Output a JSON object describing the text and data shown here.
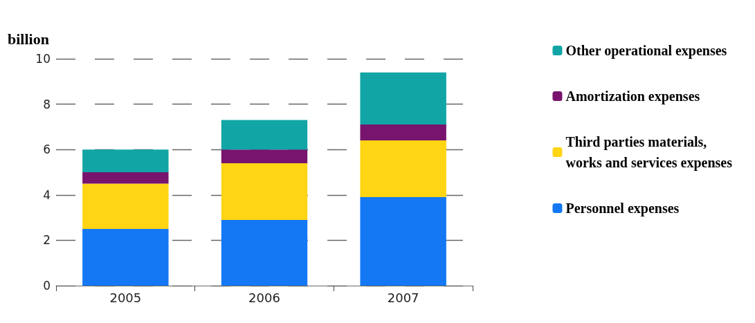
{
  "chart_data": {
    "type": "bar",
    "ylabel": "billion",
    "categories": [
      "2005",
      "2006",
      "2007"
    ],
    "stacked": true,
    "series": [
      {
        "name": "Personnel expenses",
        "color": "#1478f5",
        "values": [
          2.5,
          2.9,
          3.9
        ]
      },
      {
        "name": "Third parties materials, works and services expenses",
        "color": "#ffd514",
        "values": [
          2.0,
          2.5,
          2.5
        ]
      },
      {
        "name": "Amortization expenses",
        "color": "#78146e",
        "values": [
          0.5,
          0.6,
          0.7
        ]
      },
      {
        "name": "Other operational expenses",
        "color": "#12a5a5",
        "values": [
          1.0,
          1.3,
          2.3
        ]
      }
    ],
    "ylim": [
      0,
      10
    ],
    "yticks": [
      0,
      2,
      4,
      6,
      8,
      10
    ],
    "grid": "y",
    "legend": "right"
  }
}
